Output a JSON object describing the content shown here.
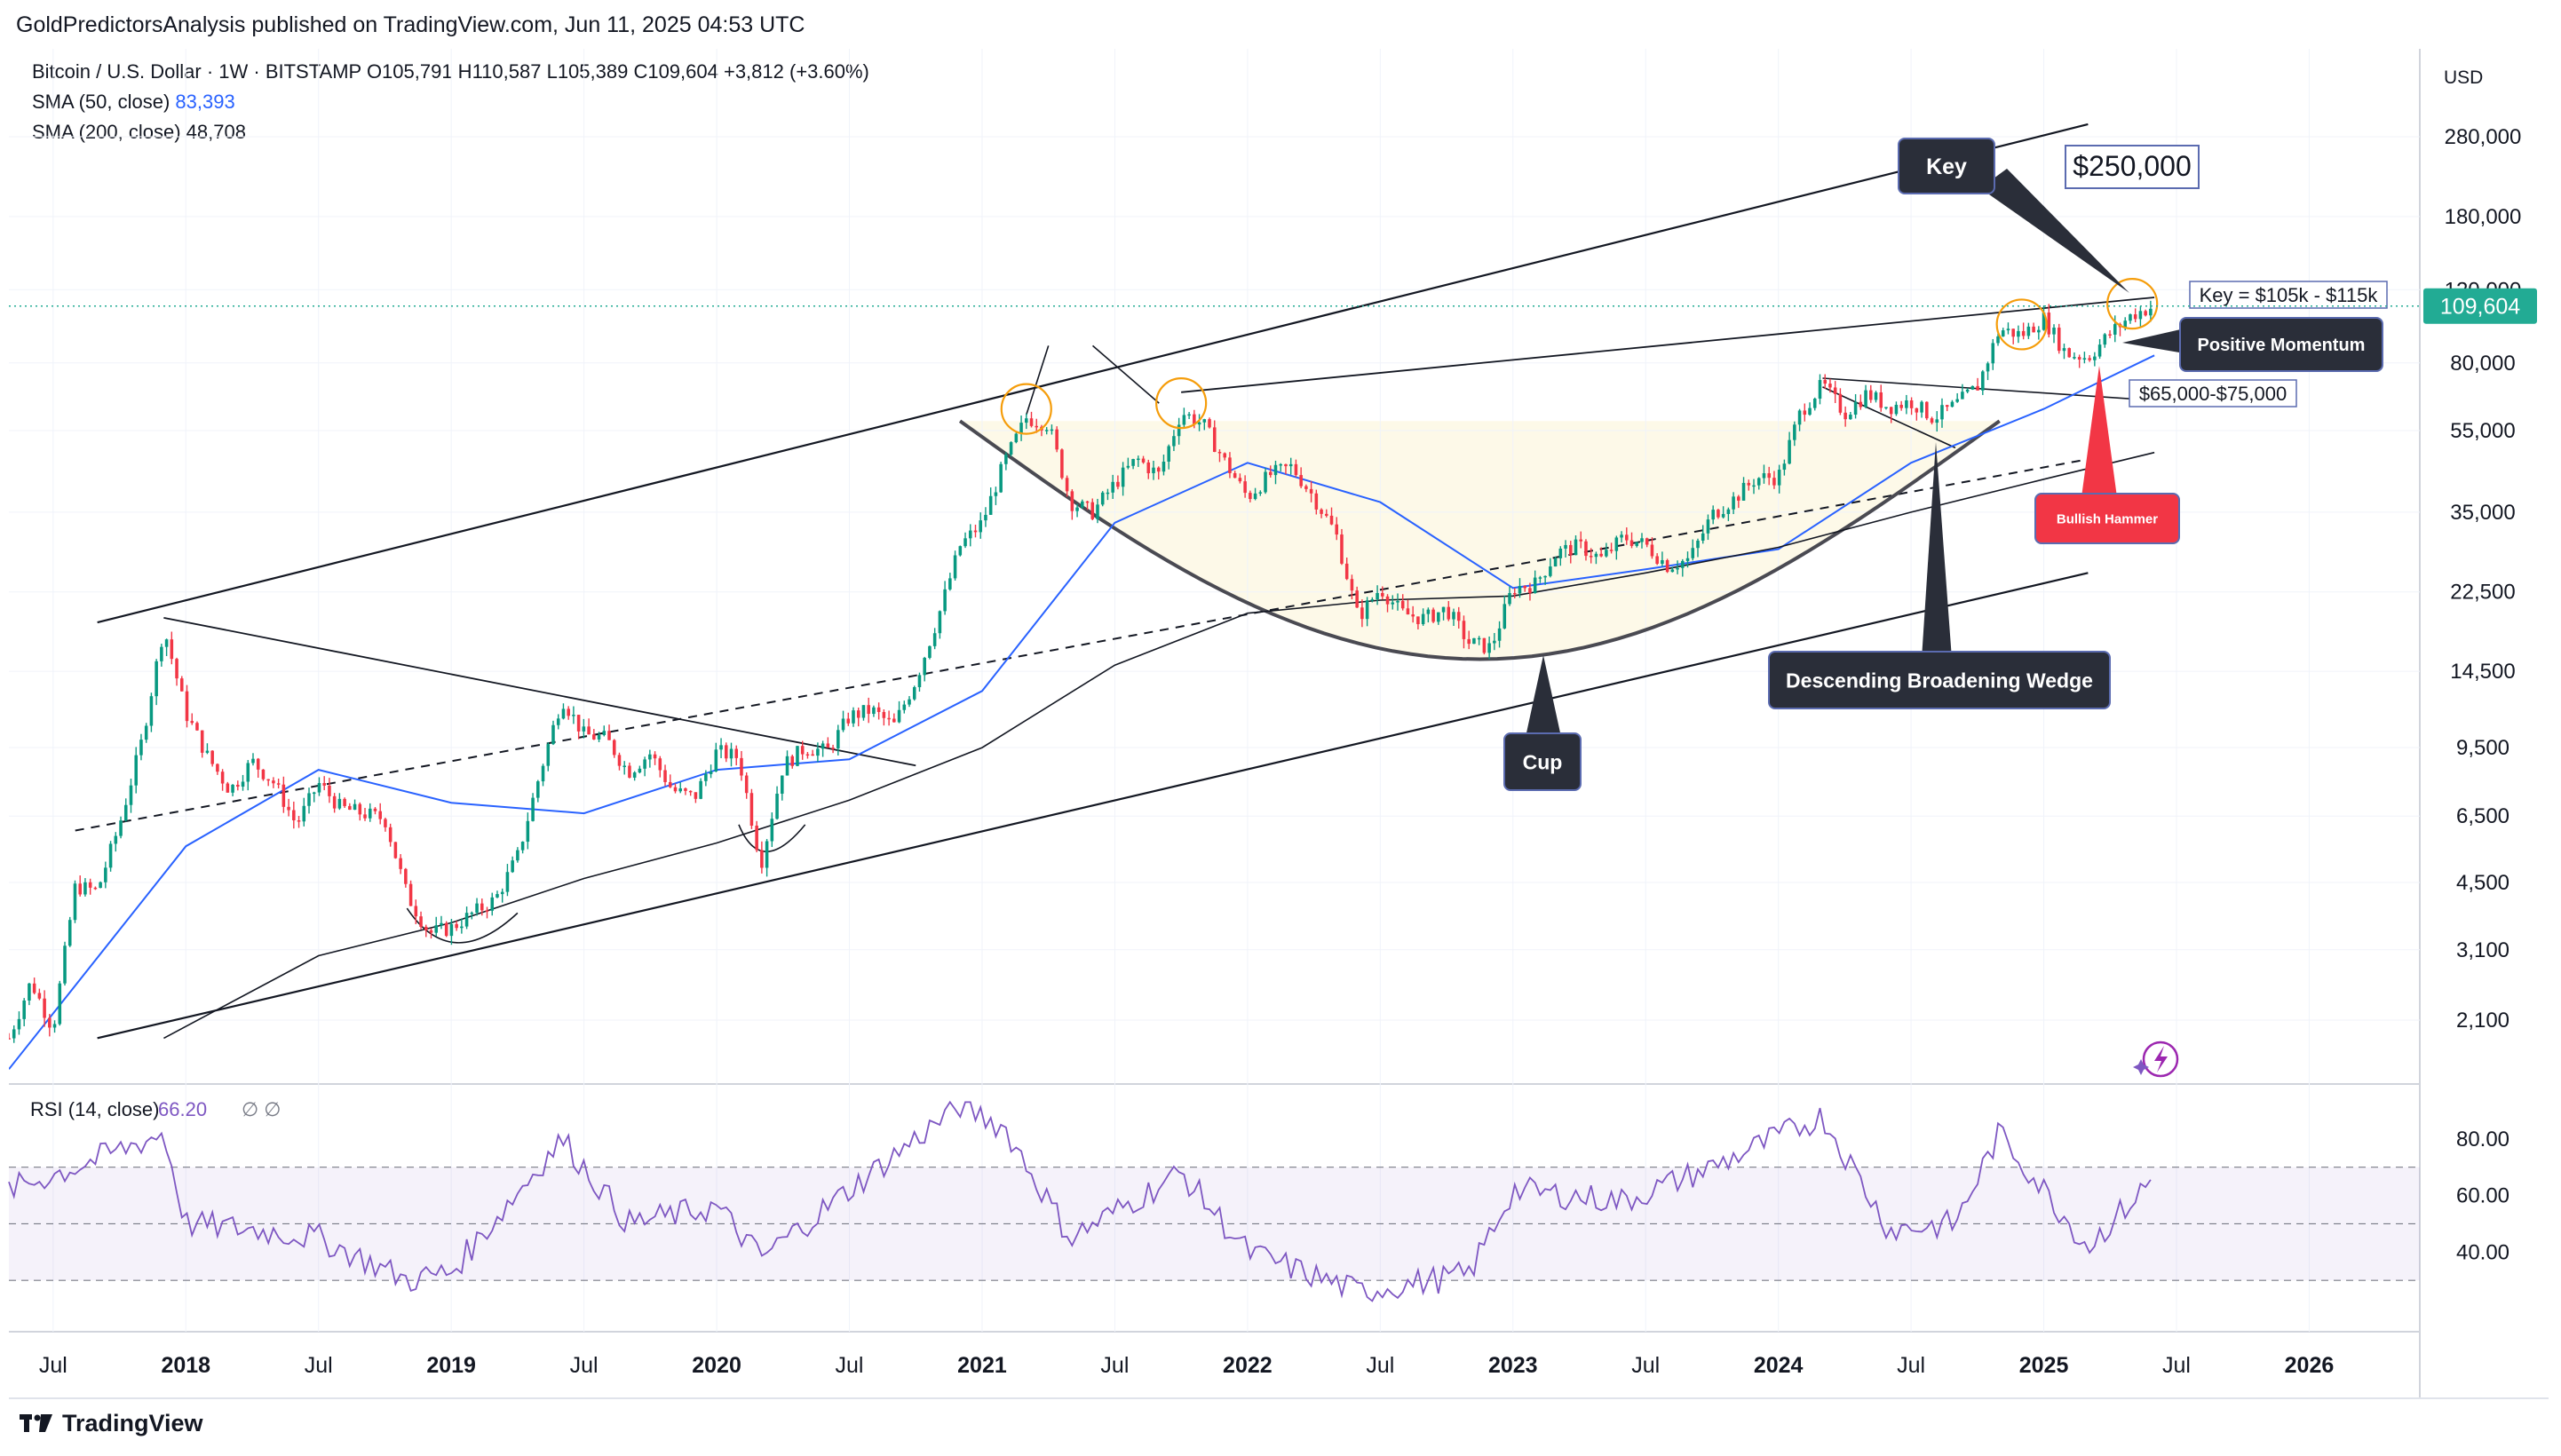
{
  "header": {
    "published": "GoldPredictorsAnalysis published on TradingView.com, Jun 11, 2025 04:53 UTC"
  },
  "legend": {
    "symbol": "Bitcoin / U.S. Dollar · 1W · BITSTAMP",
    "ohlc": "O105,791  H110,587  L105,389  C109,604  +3,812 (+3.60%)",
    "sma50_label": "SMA (50, close)",
    "sma50_value": "83,393",
    "sma200_label": "SMA (200, close)",
    "sma200_value": "48,708"
  },
  "price_scale": {
    "currency": "USD",
    "last_price": "109,604",
    "last_price_color": "#22ab94"
  },
  "rsi": {
    "label": "RSI (14, close)",
    "value": "66.20",
    "extra": "∅  ∅",
    "ticks": [
      "80.00",
      "60.00",
      "40.00"
    ]
  },
  "footer": {
    "brand": "TradingView"
  },
  "chart_data": {
    "type": "candlestick",
    "title": "Bitcoin / U.S. Dollar · 1W · BITSTAMP",
    "y_scale": "log",
    "ylim": [
      1500,
      420000
    ],
    "y_ticks": [
      280000,
      180000,
      120000,
      80000,
      55000,
      35000,
      22500,
      14500,
      9500,
      6500,
      4500,
      3100,
      2100
    ],
    "y_tick_labels": [
      "280,000",
      "180,000",
      "120,000",
      "80,000",
      "55,000",
      "35,000",
      "22,500",
      "14,500",
      "9,500",
      "6,500",
      "4,500",
      "3,100",
      "2,100"
    ],
    "x_ticks": [
      "Jul",
      "2018",
      "Jul",
      "2019",
      "Jul",
      "2020",
      "Jul",
      "2021",
      "Jul",
      "2022",
      "Jul",
      "2023",
      "Jul",
      "2024",
      "Jul",
      "2025",
      "Jul",
      "2026"
    ],
    "x_tick_dates": [
      "2017-07",
      "2018-01",
      "2018-07",
      "2019-01",
      "2019-07",
      "2020-01",
      "2020-07",
      "2021-01",
      "2021-07",
      "2022-01",
      "2022-07",
      "2023-01",
      "2023-07",
      "2024-01",
      "2024-07",
      "2025-01",
      "2025-07",
      "2026-01"
    ],
    "xlim": [
      "2017-05",
      "2026-06"
    ],
    "price_path": [
      [
        "2017-05",
        1900
      ],
      [
        "2017-06",
        2600
      ],
      [
        "2017-07",
        2000
      ],
      [
        "2017-08",
        4400
      ],
      [
        "2017-09",
        4300
      ],
      [
        "2017-10",
        6200
      ],
      [
        "2017-11",
        9800
      ],
      [
        "2017-12",
        18500
      ],
      [
        "2018-01",
        11500
      ],
      [
        "2018-02",
        9000
      ],
      [
        "2018-03",
        7500
      ],
      [
        "2018-04",
        8800
      ],
      [
        "2018-05",
        7800
      ],
      [
        "2018-06",
        6200
      ],
      [
        "2018-07",
        7800
      ],
      [
        "2018-08",
        6800
      ],
      [
        "2018-09",
        6600
      ],
      [
        "2018-10",
        6400
      ],
      [
        "2018-11",
        4200
      ],
      [
        "2018-12",
        3400
      ],
      [
        "2019-01",
        3500
      ],
      [
        "2019-02",
        3800
      ],
      [
        "2019-03",
        4100
      ],
      [
        "2019-04",
        5200
      ],
      [
        "2019-05",
        8200
      ],
      [
        "2019-06",
        12500
      ],
      [
        "2019-07",
        10200
      ],
      [
        "2019-08",
        10000
      ],
      [
        "2019-09",
        8300
      ],
      [
        "2019-10",
        9200
      ],
      [
        "2019-11",
        7500
      ],
      [
        "2019-12",
        7200
      ],
      [
        "2020-01",
        9300
      ],
      [
        "2020-02",
        9000
      ],
      [
        "2020-03",
        5000
      ],
      [
        "2020-04",
        8600
      ],
      [
        "2020-05",
        9500
      ],
      [
        "2020-06",
        9300
      ],
      [
        "2020-07",
        11300
      ],
      [
        "2020-08",
        11700
      ],
      [
        "2020-09",
        10700
      ],
      [
        "2020-10",
        13800
      ],
      [
        "2020-11",
        19500
      ],
      [
        "2020-12",
        29000
      ],
      [
        "2021-01",
        33000
      ],
      [
        "2021-02",
        46000
      ],
      [
        "2021-03",
        59000
      ],
      [
        "2021-04",
        57000
      ],
      [
        "2021-05",
        37000
      ],
      [
        "2021-06",
        35000
      ],
      [
        "2021-07",
        41000
      ],
      [
        "2021-08",
        47000
      ],
      [
        "2021-09",
        43000
      ],
      [
        "2021-10",
        61000
      ],
      [
        "2021-11",
        57000
      ],
      [
        "2021-12",
        46000
      ],
      [
        "2022-01",
        38000
      ],
      [
        "2022-02",
        43000
      ],
      [
        "2022-03",
        45000
      ],
      [
        "2022-04",
        38000
      ],
      [
        "2022-05",
        31000
      ],
      [
        "2022-06",
        19500
      ],
      [
        "2022-07",
        23000
      ],
      [
        "2022-08",
        20000
      ],
      [
        "2022-09",
        19400
      ],
      [
        "2022-10",
        20500
      ],
      [
        "2022-11",
        17000
      ],
      [
        "2022-12",
        16500
      ],
      [
        "2023-01",
        23000
      ],
      [
        "2023-02",
        23500
      ],
      [
        "2023-03",
        28000
      ],
      [
        "2023-04",
        29000
      ],
      [
        "2023-05",
        27000
      ],
      [
        "2023-06",
        30500
      ],
      [
        "2023-07",
        29200
      ],
      [
        "2023-08",
        26000
      ],
      [
        "2023-09",
        27000
      ],
      [
        "2023-10",
        34500
      ],
      [
        "2023-11",
        37700
      ],
      [
        "2023-12",
        42300
      ],
      [
        "2024-01",
        42500
      ],
      [
        "2024-02",
        61000
      ],
      [
        "2024-03",
        71000
      ],
      [
        "2024-04",
        60500
      ],
      [
        "2024-05",
        67500
      ],
      [
        "2024-06",
        62700
      ],
      [
        "2024-07",
        64600
      ],
      [
        "2024-08",
        59000
      ],
      [
        "2024-09",
        63300
      ],
      [
        "2024-10",
        70200
      ],
      [
        "2024-11",
        96400
      ],
      [
        "2024-12",
        93400
      ],
      [
        "2025-01",
        102400
      ],
      [
        "2025-02",
        84300
      ],
      [
        "2025-03",
        82500
      ],
      [
        "2025-04",
        94200
      ],
      [
        "2025-05",
        104600
      ],
      [
        "2025-06",
        109604
      ]
    ],
    "sma50": [
      [
        "2017-05",
        1600
      ],
      [
        "2018-01",
        5500
      ],
      [
        "2018-07",
        8400
      ],
      [
        "2019-01",
        7000
      ],
      [
        "2019-07",
        6600
      ],
      [
        "2020-01",
        8400
      ],
      [
        "2020-07",
        8900
      ],
      [
        "2021-01",
        13000
      ],
      [
        "2021-07",
        33000
      ],
      [
        "2022-01",
        46000
      ],
      [
        "2022-07",
        37000
      ],
      [
        "2023-01",
        23000
      ],
      [
        "2023-07",
        25500
      ],
      [
        "2024-01",
        28500
      ],
      [
        "2024-07",
        46000
      ],
      [
        "2025-01",
        62000
      ],
      [
        "2025-06",
        83393
      ]
    ],
    "sma200": [
      [
        "2017-12",
        1900
      ],
      [
        "2018-07",
        3000
      ],
      [
        "2019-01",
        3600
      ],
      [
        "2019-07",
        4600
      ],
      [
        "2020-01",
        5600
      ],
      [
        "2020-07",
        7100
      ],
      [
        "2021-01",
        9500
      ],
      [
        "2021-07",
        15000
      ],
      [
        "2022-01",
        20000
      ],
      [
        "2022-07",
        21500
      ],
      [
        "2023-01",
        22000
      ],
      [
        "2023-07",
        25000
      ],
      [
        "2024-01",
        28800
      ],
      [
        "2024-07",
        35000
      ],
      [
        "2025-01",
        42000
      ],
      [
        "2025-06",
        48708
      ]
    ],
    "rsi_path": [
      [
        "2017-05",
        62
      ],
      [
        "2017-08",
        70
      ],
      [
        "2017-12",
        82
      ],
      [
        "2018-01",
        50
      ],
      [
        "2018-04",
        48
      ],
      [
        "2018-07",
        45
      ],
      [
        "2018-11",
        30
      ],
      [
        "2019-01",
        33
      ],
      [
        "2019-06",
        80
      ],
      [
        "2019-09",
        50
      ],
      [
        "2020-01",
        56
      ],
      [
        "2020-03",
        38
      ],
      [
        "2020-07",
        62
      ],
      [
        "2020-12",
        92
      ],
      [
        "2021-02",
        84
      ],
      [
        "2021-05",
        45
      ],
      [
        "2021-10",
        68
      ],
      [
        "2022-01",
        40
      ],
      [
        "2022-06",
        26
      ],
      [
        "2022-11",
        32
      ],
      [
        "2023-01",
        62
      ],
      [
        "2023-06",
        58
      ],
      [
        "2023-10",
        70
      ],
      [
        "2024-03",
        88
      ],
      [
        "2024-06",
        48
      ],
      [
        "2024-09",
        50
      ],
      [
        "2024-11",
        82
      ],
      [
        "2025-03",
        42
      ],
      [
        "2025-06",
        66.2
      ]
    ],
    "annotations": [
      "Key",
      "$250,000",
      "Key = $105k - $115k",
      "Positive Momentum",
      "$65,000-$75,000",
      "Bullish Hammer",
      "Descending Broadening Wedge",
      "Cup"
    ]
  }
}
